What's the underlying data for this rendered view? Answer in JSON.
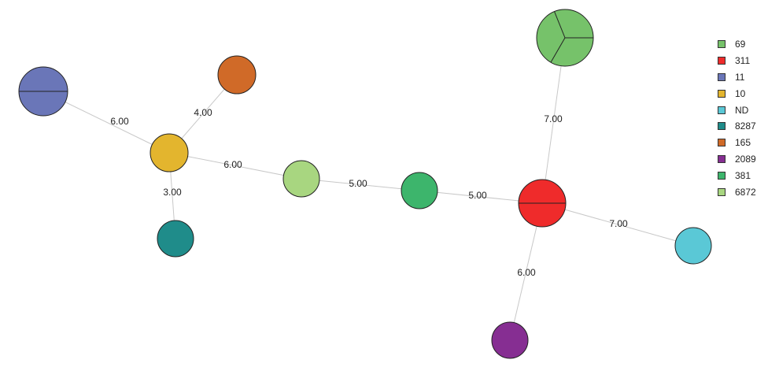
{
  "legend": [
    {
      "label": "69",
      "color": "#76c26a"
    },
    {
      "label": "311",
      "color": "#ef2b2b"
    },
    {
      "label": "11",
      "color": "#6a76b8"
    },
    {
      "label": "10",
      "color": "#e3b52e"
    },
    {
      "label": "ND",
      "color": "#5ac8d6"
    },
    {
      "label": "8287",
      "color": "#1f8c8a"
    },
    {
      "label": "165",
      "color": "#d06a28"
    },
    {
      "label": "2089",
      "color": "#862e92"
    },
    {
      "label": "381",
      "color": "#3db56c"
    },
    {
      "label": "6872",
      "color": "#a8d680"
    }
  ],
  "nodes": [
    {
      "id": "n69",
      "type": "69",
      "parts": 3
    },
    {
      "id": "n311",
      "type": "311",
      "parts": 2
    },
    {
      "id": "n11",
      "type": "11",
      "parts": 2
    },
    {
      "id": "n10",
      "type": "10",
      "parts": 1
    },
    {
      "id": "nND",
      "type": "ND",
      "parts": 1
    },
    {
      "id": "n8287",
      "type": "8287",
      "parts": 1
    },
    {
      "id": "n165",
      "type": "165",
      "parts": 1
    },
    {
      "id": "n2089",
      "type": "2089",
      "parts": 1
    },
    {
      "id": "n381",
      "type": "381",
      "parts": 1
    },
    {
      "id": "n6872",
      "type": "6872",
      "parts": 1
    }
  ],
  "edges": [
    {
      "from": "n11",
      "to": "n10",
      "label": "6.00"
    },
    {
      "from": "n165",
      "to": "n10",
      "label": "4.00"
    },
    {
      "from": "n10",
      "to": "n8287",
      "label": "3.00"
    },
    {
      "from": "n10",
      "to": "n6872",
      "label": "6.00"
    },
    {
      "from": "n6872",
      "to": "n381",
      "label": "5.00"
    },
    {
      "from": "n381",
      "to": "n311",
      "label": "5.00"
    },
    {
      "from": "n311",
      "to": "n69",
      "label": "7.00"
    },
    {
      "from": "n311",
      "to": "nND",
      "label": "7.00"
    },
    {
      "from": "n311",
      "to": "n2089",
      "label": "6.00"
    }
  ]
}
